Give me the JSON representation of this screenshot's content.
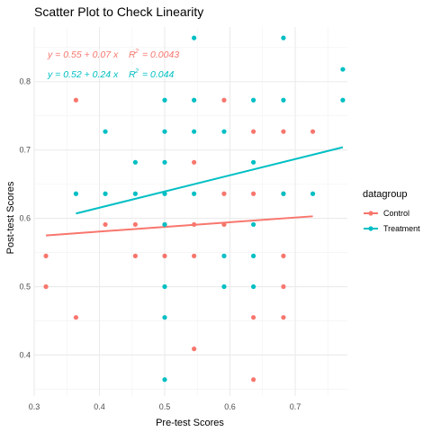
{
  "chart_data": {
    "type": "scatter",
    "title": "Scatter Plot to Check Linearity",
    "xlabel": "Pre-test Scores",
    "ylabel": "Post-test Scores",
    "xlim": [
      0.3,
      0.78
    ],
    "ylim": [
      0.34,
      0.88
    ],
    "x_ticks": [
      0.3,
      0.4,
      0.5,
      0.6,
      0.7
    ],
    "y_ticks": [
      0.4,
      0.5,
      0.6,
      0.7,
      0.8
    ],
    "x_tick_labels": [
      "0.3",
      "0.4",
      "0.5",
      "0.6",
      "0.7"
    ],
    "y_tick_labels": [
      "0.4",
      "0.5",
      "0.6",
      "0.7",
      "0.8"
    ],
    "grid": true,
    "legend": {
      "title": "datagroup",
      "position": "right"
    },
    "series": [
      {
        "name": "Control",
        "color": "#F8766D",
        "points": [
          [
            0.318,
            0.545
          ],
          [
            0.318,
            0.5
          ],
          [
            0.364,
            0.773
          ],
          [
            0.364,
            0.455
          ],
          [
            0.409,
            0.591
          ],
          [
            0.455,
            0.591
          ],
          [
            0.455,
            0.545
          ],
          [
            0.5,
            0.591
          ],
          [
            0.5,
            0.545
          ],
          [
            0.545,
            0.682
          ],
          [
            0.545,
            0.591
          ],
          [
            0.545,
            0.545
          ],
          [
            0.545,
            0.409
          ],
          [
            0.591,
            0.773
          ],
          [
            0.591,
            0.636
          ],
          [
            0.591,
            0.591
          ],
          [
            0.636,
            0.727
          ],
          [
            0.636,
            0.636
          ],
          [
            0.636,
            0.455
          ],
          [
            0.636,
            0.364
          ],
          [
            0.682,
            0.727
          ],
          [
            0.682,
            0.636
          ],
          [
            0.682,
            0.545
          ],
          [
            0.682,
            0.5
          ],
          [
            0.682,
            0.455
          ],
          [
            0.727,
            0.727
          ]
        ],
        "fit": {
          "x": [
            0.318,
            0.727
          ],
          "y": [
            0.575,
            0.603
          ]
        },
        "equation": "y = 0.55 + 0.07 x",
        "r2_label": "R",
        "r2_sup": "2",
        "r2_value": "= 0.0043"
      },
      {
        "name": "Treatment",
        "color": "#00BFC4",
        "points": [
          [
            0.364,
            0.636
          ],
          [
            0.409,
            0.727
          ],
          [
            0.409,
            0.636
          ],
          [
            0.455,
            0.682
          ],
          [
            0.455,
            0.636
          ],
          [
            0.5,
            0.773
          ],
          [
            0.5,
            0.727
          ],
          [
            0.5,
            0.682
          ],
          [
            0.5,
            0.636
          ],
          [
            0.5,
            0.591
          ],
          [
            0.5,
            0.5
          ],
          [
            0.5,
            0.455
          ],
          [
            0.5,
            0.364
          ],
          [
            0.545,
            0.864
          ],
          [
            0.545,
            0.773
          ],
          [
            0.545,
            0.727
          ],
          [
            0.545,
            0.636
          ],
          [
            0.591,
            0.727
          ],
          [
            0.591,
            0.545
          ],
          [
            0.591,
            0.5
          ],
          [
            0.636,
            0.773
          ],
          [
            0.636,
            0.682
          ],
          [
            0.636,
            0.591
          ],
          [
            0.636,
            0.545
          ],
          [
            0.636,
            0.5
          ],
          [
            0.682,
            0.864
          ],
          [
            0.682,
            0.773
          ],
          [
            0.682,
            0.636
          ],
          [
            0.727,
            0.636
          ],
          [
            0.773,
            0.818
          ],
          [
            0.773,
            0.773
          ]
        ],
        "fit": {
          "x": [
            0.364,
            0.773
          ],
          "y": [
            0.607,
            0.704
          ]
        },
        "equation": "y = 0.52 + 0.24 x",
        "r2_label": "R",
        "r2_sup": "2",
        "r2_value": "= 0.044"
      }
    ]
  }
}
